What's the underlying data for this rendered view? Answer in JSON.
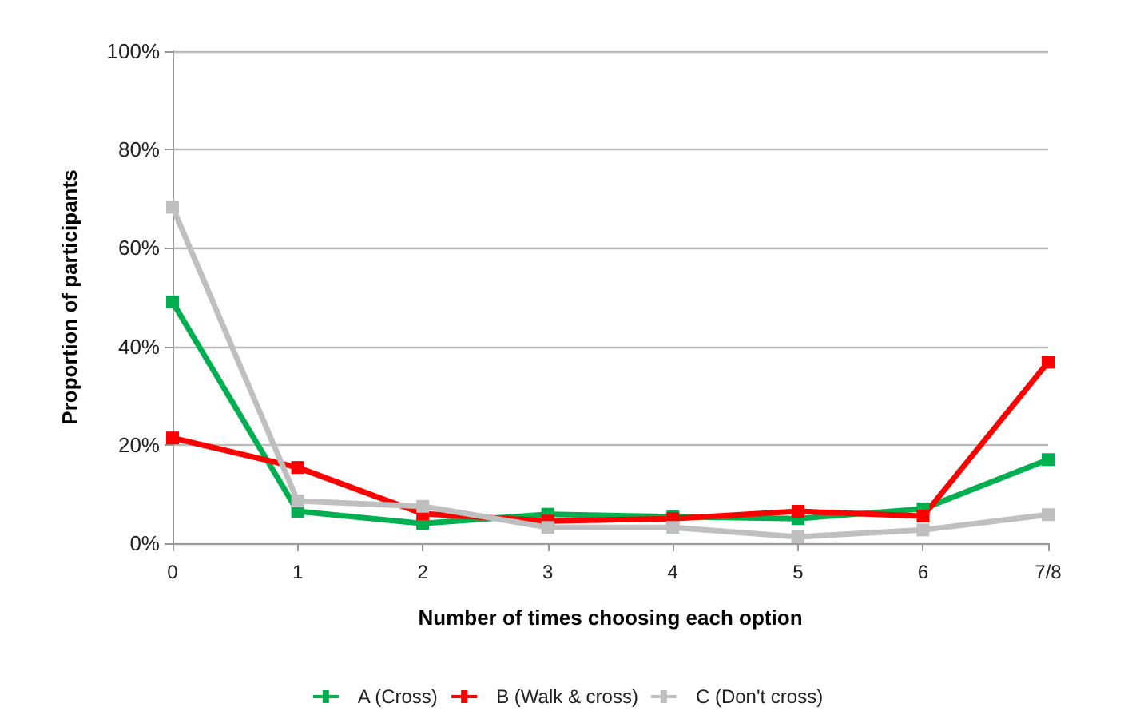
{
  "chart_data": {
    "type": "line",
    "xlabel": "Number of times choosing each option",
    "ylabel": "Proportion of participants",
    "categories": [
      "0",
      "1",
      "2",
      "3",
      "4",
      "5",
      "6",
      "7/8"
    ],
    "series": [
      {
        "name": "A (Cross)",
        "color": "#00b050",
        "values": [
          49,
          6.5,
          4,
          5.9,
          5.4,
          5,
          7,
          17
        ]
      },
      {
        "name": "B (Walk & cross)",
        "color": "#ff0000",
        "values": [
          21.4,
          15.4,
          6,
          4.5,
          5,
          6.5,
          5.5,
          36.8
        ]
      },
      {
        "name": "C (Don't cross)",
        "color": "#bfbfbf",
        "values": [
          68.3,
          8.6,
          7.5,
          3.2,
          3.2,
          1.3,
          2.7,
          5.8
        ]
      }
    ],
    "ylim": [
      0,
      100
    ],
    "yticks": [
      {
        "value": 0,
        "label": "0%"
      },
      {
        "value": 20,
        "label": "20%"
      },
      {
        "value": 40,
        "label": "40%"
      },
      {
        "value": 60,
        "label": "60%"
      },
      {
        "value": 80,
        "label": "80%"
      },
      {
        "value": 100,
        "label": "100%"
      }
    ],
    "grid": "y",
    "legend": "bottom",
    "marker": "square",
    "line_style": "solid"
  }
}
